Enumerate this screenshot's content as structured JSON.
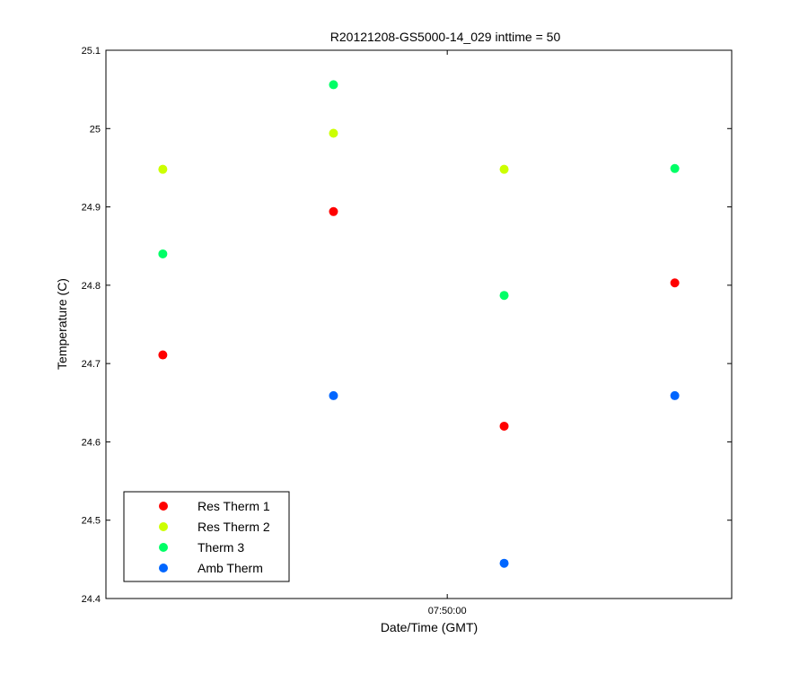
{
  "chart_data": {
    "type": "scatter",
    "title": "R20121208-GS5000-14_029 inttime = 50",
    "xlabel": "Date/Time (GMT)",
    "ylabel": "Temperature (C)",
    "ylim": [
      24.4,
      25.1
    ],
    "yticks": [
      "24.4",
      "24.5",
      "24.6",
      "24.7",
      "24.8",
      "24.9",
      "25",
      "25.1"
    ],
    "xticks": [
      "07:50:00"
    ],
    "x": [
      "07:49:10",
      "07:49:40",
      "07:50:10",
      "07:50:40"
    ],
    "xlim": [
      "07:49:00",
      "07:50:50"
    ],
    "xtick_at": "07:50:00",
    "grid": false,
    "legend_position": "bottom-left",
    "series": [
      {
        "name": "Res Therm 1",
        "color": "#ff0000",
        "values": [
          24.711,
          24.894,
          24.62,
          24.803
        ]
      },
      {
        "name": "Res Therm 2",
        "color": "#ccff00",
        "values": [
          24.948,
          24.994,
          24.948,
          null
        ]
      },
      {
        "name": "Therm 3",
        "color": "#00ff66",
        "values": [
          24.84,
          25.056,
          24.787,
          24.949
        ]
      },
      {
        "name": "Amb Therm",
        "color": "#0066ff",
        "values": [
          null,
          24.659,
          24.445,
          24.659
        ]
      }
    ]
  }
}
